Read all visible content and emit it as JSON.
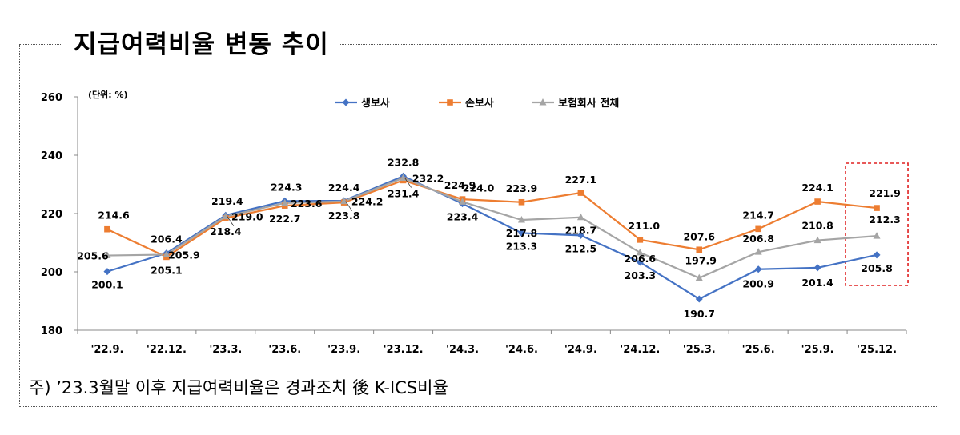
{
  "title": "지급여력비율 변동 추이",
  "note": "주) ’23.3월말 이후 지급여력비율은 경과조치 後 K-ICS비율",
  "chart_data": {
    "type": "line",
    "unit_label": "(단위: %)",
    "categories": [
      "'22.9.",
      "'22.12.",
      "'23.3.",
      "'23.6.",
      "'23.9.",
      "'23.12.",
      "'24.3.",
      "'24.6.",
      "'24.9.",
      "'24.12.",
      "'25.3.",
      "'25.6.",
      "'25.9.",
      "'25.12."
    ],
    "ylim": [
      180,
      260
    ],
    "yticks": [
      180,
      200,
      220,
      240,
      260
    ],
    "legend_position": "top",
    "highlight_category": "'25.12.",
    "series": [
      {
        "name": "생보사",
        "color": "#4472C4",
        "marker": "diamond",
        "values": [
          200.1,
          206.4,
          219.4,
          224.3,
          224.4,
          232.8,
          223.4,
          213.3,
          212.5,
          203.3,
          190.7,
          200.9,
          201.4,
          205.8
        ]
      },
      {
        "name": "손보사",
        "color": "#ED7D31",
        "marker": "square",
        "values": [
          214.6,
          205.1,
          218.4,
          222.7,
          223.8,
          231.4,
          224.9,
          223.9,
          227.1,
          211.0,
          207.6,
          214.7,
          224.1,
          221.9
        ]
      },
      {
        "name": "보험회사 전체",
        "color": "#A5A5A5",
        "marker": "triangle",
        "values": [
          205.6,
          205.9,
          219.0,
          223.6,
          224.2,
          232.2,
          224.0,
          217.8,
          218.7,
          206.6,
          197.9,
          206.8,
          210.8,
          212.3
        ]
      }
    ]
  }
}
